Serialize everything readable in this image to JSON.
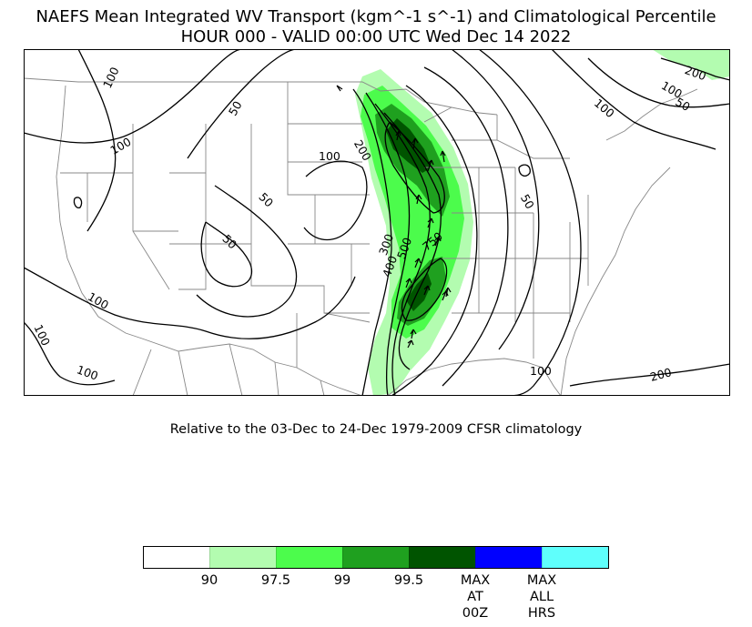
{
  "title_line1": "NAEFS Mean Integrated WV Transport (kgm^-1 s^-1) and Climatological Percentile",
  "title_line2": "HOUR 000 - VALID 00:00 UTC Wed Dec 14 2022",
  "subtitle": "Relative to the 03-Dec to 24-Dec 1979-2009 CFSR climatology",
  "map": {
    "region": "Continental United States",
    "contour_labels": [
      "100",
      "50",
      "100",
      "200",
      "100",
      "50",
      "50",
      "300",
      "400",
      "500",
      "750",
      "100",
      "100",
      "100",
      "50",
      "100",
      "100",
      "50",
      "100",
      "200",
      "200"
    ],
    "colors": {
      "p90": "#b3fcb0",
      "p97_5": "#4cfc4c",
      "p99": "#1fa01f",
      "p99_5": "#005400",
      "max_00z": "#0000ff",
      "max_all": "#5ffffc"
    }
  },
  "colorbar": {
    "segments": [
      {
        "color": "#ffffff"
      },
      {
        "color": "#b3fcb0"
      },
      {
        "color": "#4cfc4c"
      },
      {
        "color": "#1fa01f"
      },
      {
        "color": "#005400"
      },
      {
        "color": "#0000ff"
      },
      {
        "color": "#5ffffc"
      }
    ],
    "labels": [
      "90",
      "97.5",
      "99",
      "99.5",
      "MAX\nAT\n00Z",
      "MAX\nALL\nHRS"
    ]
  }
}
